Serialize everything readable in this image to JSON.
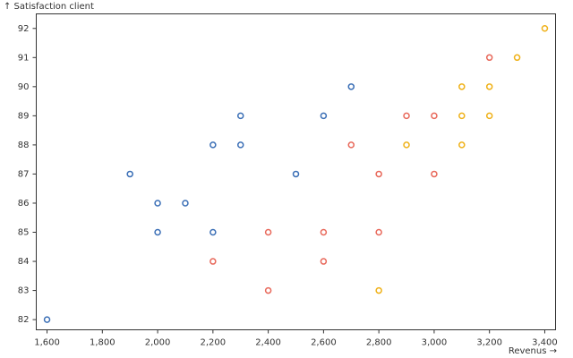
{
  "chart_data": {
    "type": "scatter",
    "y_label": "↑ Satisfaction client",
    "x_label": "Revenus →",
    "xlim": [
      1561,
      3439
    ],
    "ylim": [
      81.65,
      92.5
    ],
    "xticks": [
      {
        "value": 1600,
        "label": "1,600"
      },
      {
        "value": 1800,
        "label": "1,800"
      },
      {
        "value": 2000,
        "label": "2,000"
      },
      {
        "value": 2200,
        "label": "2,200"
      },
      {
        "value": 2400,
        "label": "2,400"
      },
      {
        "value": 2600,
        "label": "2,600"
      },
      {
        "value": 2800,
        "label": "2,800"
      },
      {
        "value": 3000,
        "label": "3,000"
      },
      {
        "value": 3200,
        "label": "3,200"
      },
      {
        "value": 3400,
        "label": "3,400"
      }
    ],
    "yticks": [
      82,
      83,
      84,
      85,
      86,
      87,
      88,
      89,
      90,
      91,
      92
    ],
    "series": [
      {
        "color": "#3b6fb6",
        "x": [
          1600,
          1900,
          2000,
          2000,
          2100,
          2200,
          2200,
          2300,
          2300,
          2500,
          2600,
          2700
        ],
        "y": [
          82,
          87,
          86,
          85,
          86,
          88,
          85,
          89,
          88,
          87,
          89,
          90
        ]
      },
      {
        "color": "#e8685a",
        "x": [
          2200,
          2400,
          2400,
          2600,
          2600,
          2700,
          2800,
          2800,
          2900,
          3000,
          3000,
          3200
        ],
        "y": [
          84,
          85,
          83,
          85,
          84,
          88,
          87,
          85,
          89,
          89,
          87,
          91
        ]
      },
      {
        "color": "#efb118",
        "x": [
          2800,
          2900,
          3100,
          3100,
          3100,
          3200,
          3200,
          3300,
          3400
        ],
        "y": [
          83,
          88,
          90,
          89,
          88,
          90,
          89,
          91,
          92
        ]
      }
    ]
  }
}
